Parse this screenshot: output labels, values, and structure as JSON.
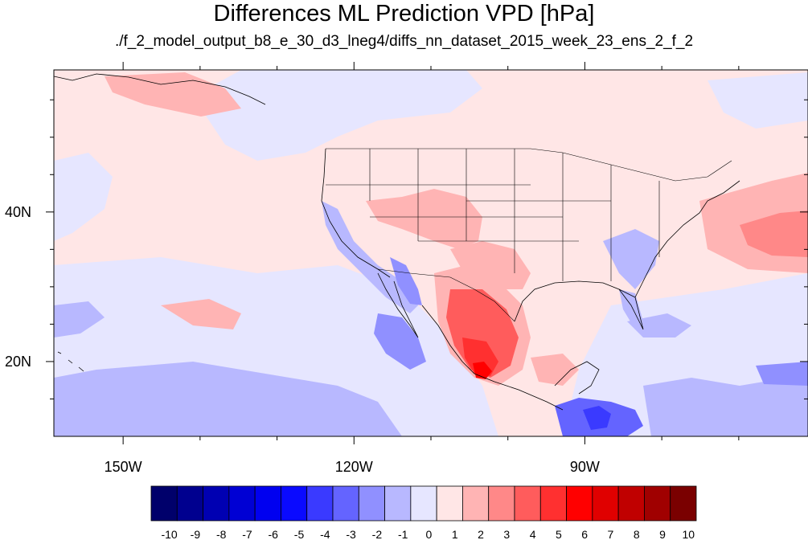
{
  "title": "Differences ML Prediction VPD [hPa]",
  "subtitle": "./f_2_model_output_b8_e_30_d3_lneg4/diffs_nn_dataset_2015_week_23_ens_2_f_2",
  "map": {
    "lon_range": [
      -159,
      -61
    ],
    "lat_range": [
      10,
      59
    ],
    "lon_ticks": [
      {
        "value": -150,
        "label": "150W"
      },
      {
        "value": -120,
        "label": "120W"
      },
      {
        "value": -90,
        "label": "90W"
      }
    ],
    "lat_ticks": [
      {
        "value": 40,
        "label": "40N"
      },
      {
        "value": 20,
        "label": "20N"
      }
    ]
  },
  "colorbar": {
    "labels": [
      "-10",
      "-9",
      "-8",
      "-7",
      "-6",
      "-5",
      "-4",
      "-3",
      "-2",
      "-1",
      "0",
      "1",
      "2",
      "3",
      "4",
      "5",
      "6",
      "7",
      "8",
      "9",
      "10"
    ],
    "colors": [
      "#00006b",
      "#00008f",
      "#0000b2",
      "#0000d4",
      "#0000f0",
      "#0a0aff",
      "#3a3aff",
      "#6464ff",
      "#9090ff",
      "#b8b8ff",
      "#e6e6ff",
      "#ffe6e6",
      "#ffb4b4",
      "#ff8888",
      "#ff5c5c",
      "#ff3030",
      "#ff0000",
      "#e00000",
      "#c00000",
      "#a00000",
      "#7a0000"
    ]
  },
  "fields": {
    "background_color": "#ffe6e6",
    "regions": [
      {
        "name": "north-pacific-light-blue",
        "color": "#e6e6ff"
      },
      {
        "name": "gulf-of-alaska-light-red",
        "color": "#ffb4b4"
      },
      {
        "name": "tropical-pacific-blue",
        "color": "#b8b8ff"
      },
      {
        "name": "baja-blue",
        "color": "#9090ff"
      },
      {
        "name": "mexico-red",
        "color": "#ff5c5c"
      },
      {
        "name": "central-mexico-hotspot",
        "color": "#ff0000"
      },
      {
        "name": "atlantic-red",
        "color": "#ff8888"
      },
      {
        "name": "central-america-blue",
        "color": "#3a3aff"
      },
      {
        "name": "southeast-us-blue",
        "color": "#b8b8ff"
      }
    ]
  }
}
